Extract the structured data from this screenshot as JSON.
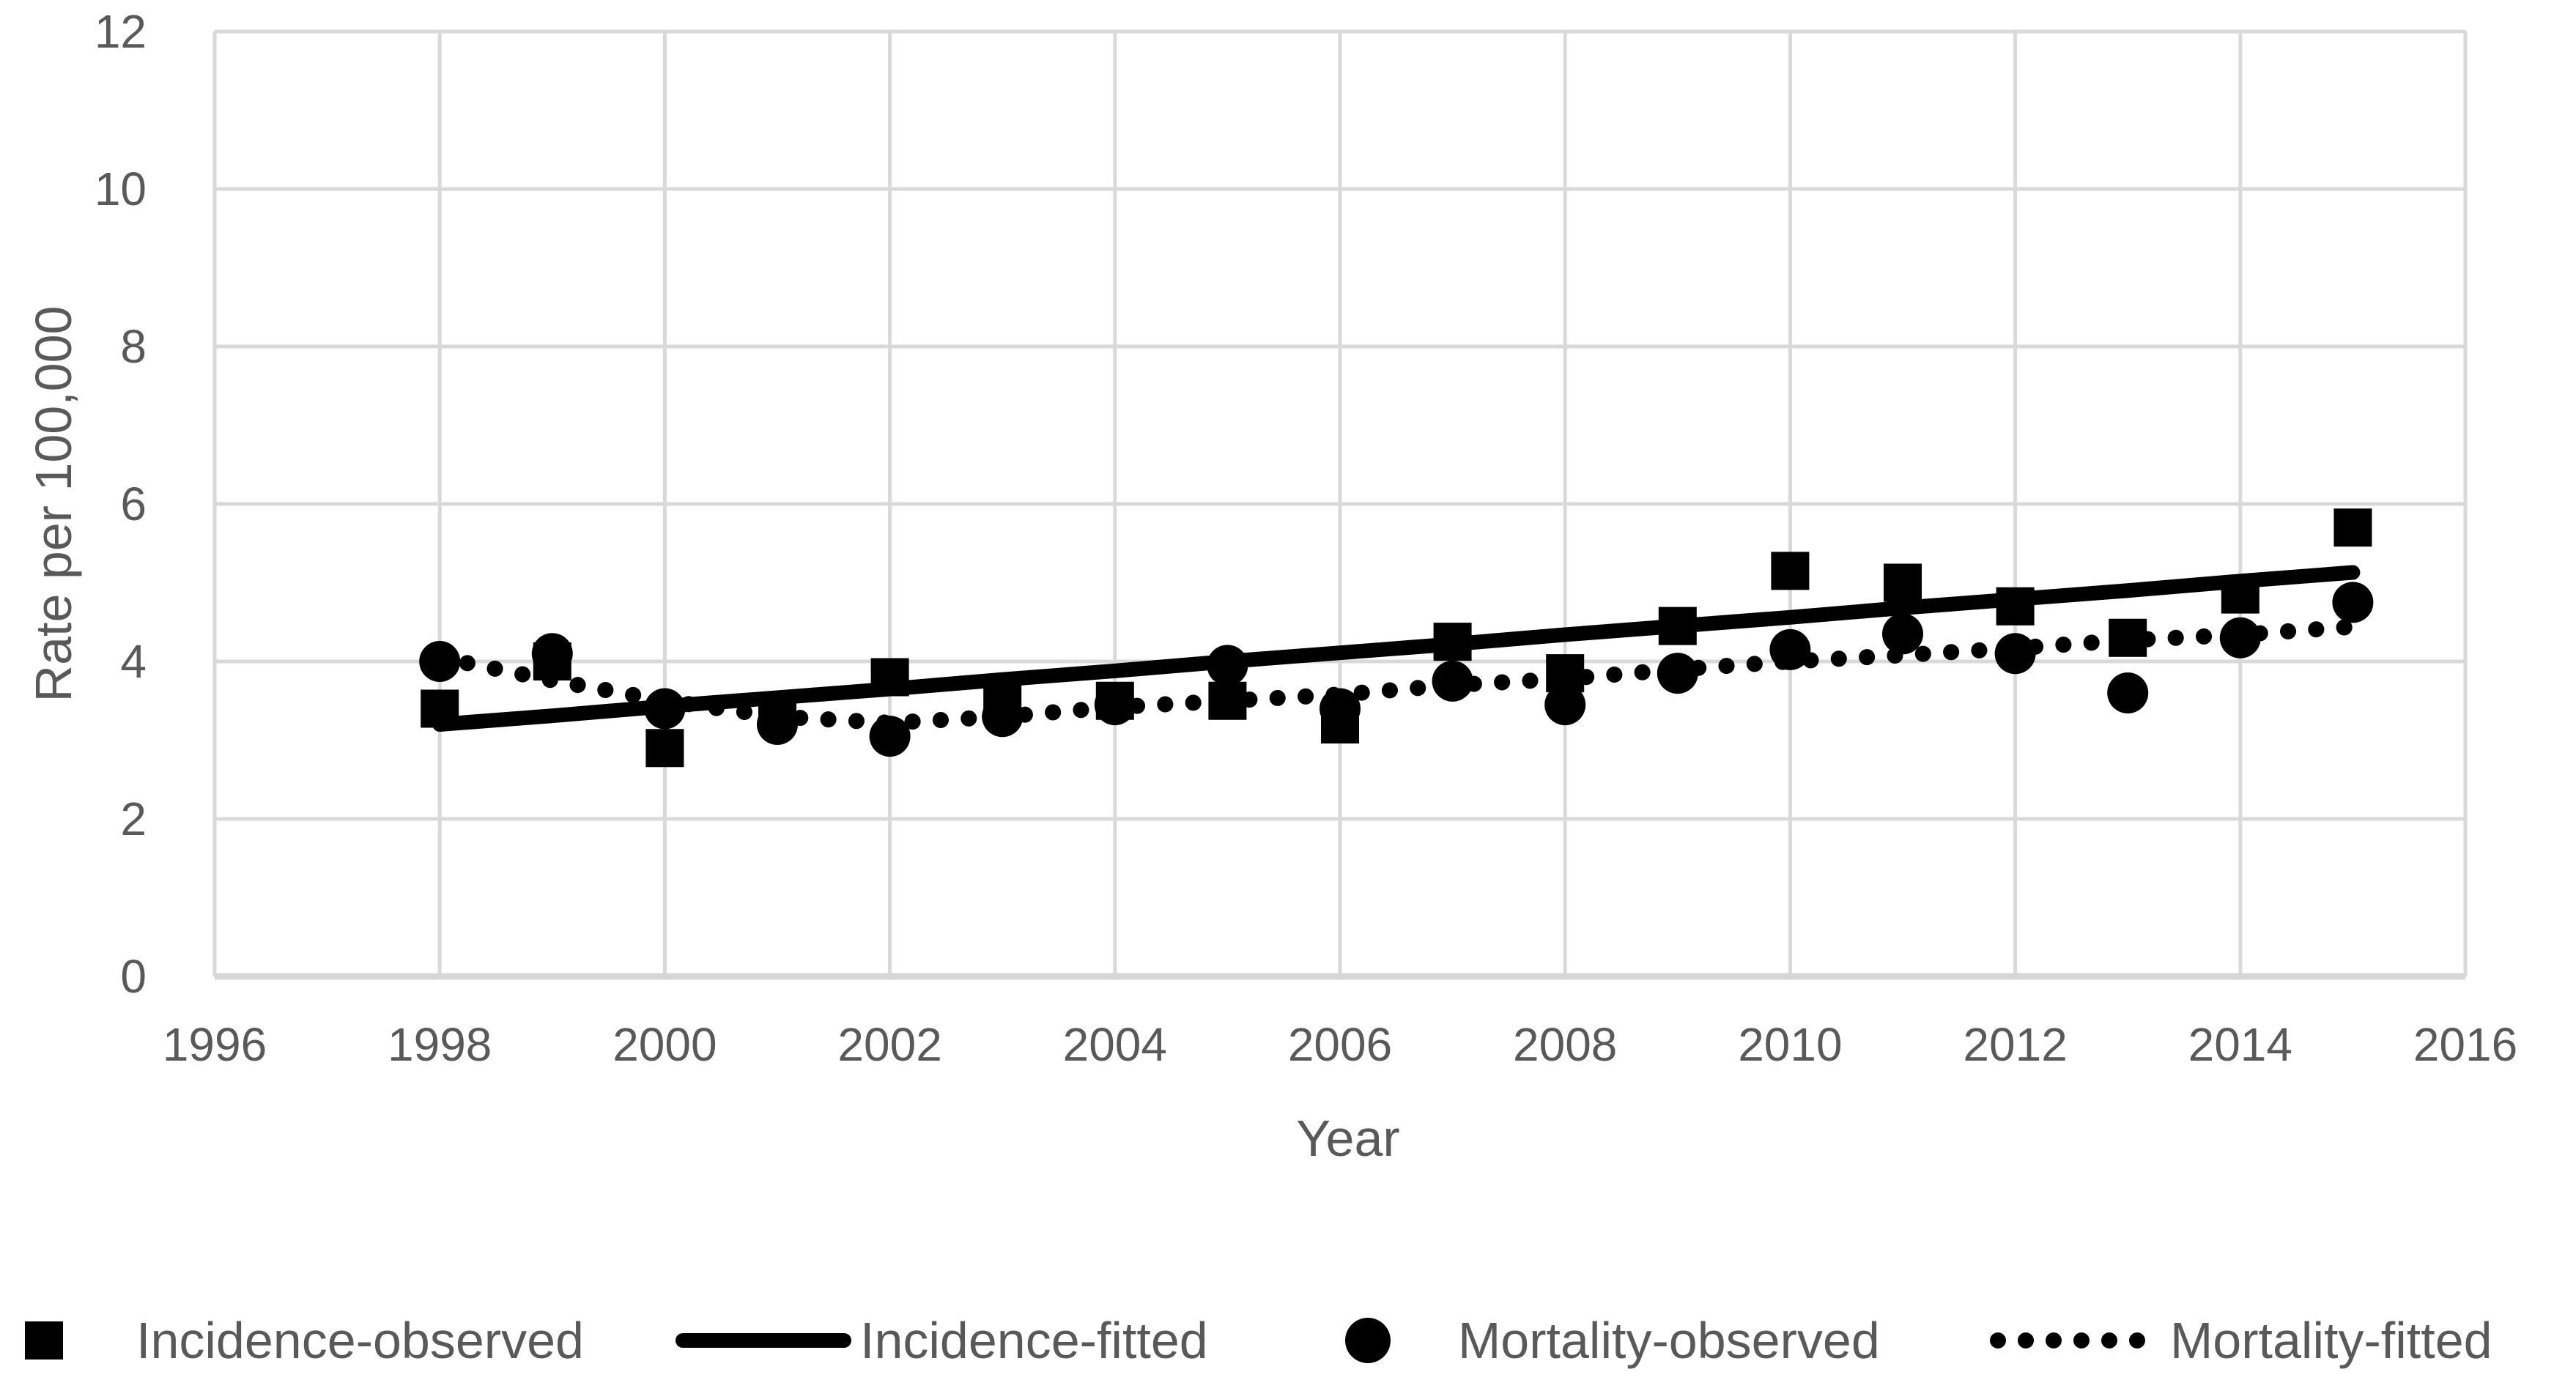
{
  "chart_data": {
    "type": "scatter",
    "title": "",
    "xlabel": "Year",
    "ylabel": "Rate per 100,000",
    "xlim": [
      1996,
      2016
    ],
    "ylim": [
      0,
      12
    ],
    "x_ticks": [
      1996,
      1998,
      2000,
      2002,
      2004,
      2006,
      2008,
      2010,
      2012,
      2014,
      2016
    ],
    "y_ticks": [
      0,
      2,
      4,
      6,
      8,
      10,
      12
    ],
    "grid": true,
    "legend_position": "bottom",
    "years": [
      1998,
      1999,
      2000,
      2001,
      2002,
      2003,
      2004,
      2005,
      2006,
      2007,
      2008,
      2009,
      2010,
      2011,
      2012,
      2013,
      2014,
      2015
    ],
    "series": [
      {
        "name": "Incidence-observed",
        "type": "scatter",
        "marker": "square",
        "values": [
          3.4,
          4.0,
          2.9,
          3.35,
          3.8,
          3.55,
          3.5,
          3.5,
          3.2,
          4.25,
          3.85,
          4.45,
          5.15,
          5.0,
          4.7,
          4.3,
          4.85,
          5.7
        ]
      },
      {
        "name": "Incidence-fitted",
        "type": "line",
        "style": "solid",
        "values": [
          3.2,
          3.31,
          3.43,
          3.54,
          3.65,
          3.77,
          3.88,
          4.0,
          4.11,
          4.22,
          4.34,
          4.45,
          4.56,
          4.68,
          4.79,
          4.9,
          5.02,
          5.13
        ]
      },
      {
        "name": "Mortality-observed",
        "type": "scatter",
        "marker": "circle",
        "values": [
          4.0,
          4.1,
          3.4,
          3.2,
          3.05,
          3.3,
          3.45,
          3.95,
          3.4,
          3.75,
          3.45,
          3.85,
          4.15,
          4.35,
          4.1,
          3.6,
          4.3,
          4.75
        ]
      },
      {
        "name": "Mortality-fitted",
        "type": "line",
        "style": "dotted",
        "values": [
          4.05,
          3.76,
          3.5,
          3.3,
          3.22,
          3.3,
          3.42,
          3.5,
          3.58,
          3.7,
          3.78,
          3.9,
          4.0,
          4.08,
          4.17,
          4.27,
          4.34,
          4.44
        ]
      }
    ]
  },
  "colors": {
    "marker": "#000000",
    "grid": "#d9d9d9",
    "axis_line": "#d6d6d6",
    "text": "#595959",
    "background": "#ffffff"
  }
}
